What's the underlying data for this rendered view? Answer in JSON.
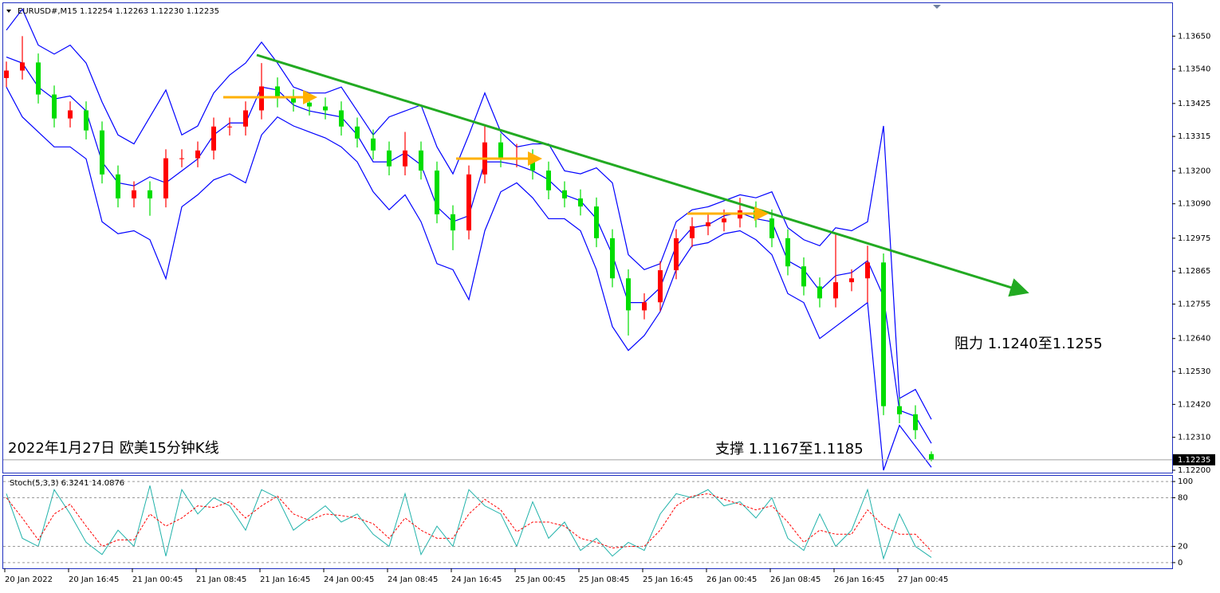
{
  "chart_data": [
    {
      "type": "candlestick",
      "title": "EURUSD#,M15 1.12254 1.12263 1.12230 1.12235",
      "annotations": [
        "2022年1月27日 欧美15分钟K线",
        "阻力 1.1240至1.1255",
        "支撑 1.1167至1.1185"
      ],
      "categories": [
        "20 Jan 2022",
        null,
        null,
        null,
        "20 Jan 16:45",
        null,
        null,
        null,
        "21 Jan 00:45",
        null,
        null,
        null,
        "21 Jan 08:45",
        null,
        null,
        null,
        "21 Jan 16:45",
        null,
        null,
        null,
        "24 Jan 00:45",
        null,
        null,
        null,
        "24 Jan 08:45",
        null,
        null,
        null,
        "24 Jan 16:45",
        null,
        null,
        null,
        "25 Jan 00:45",
        null,
        null,
        null,
        "25 Jan 08:45",
        null,
        null,
        null,
        "25 Jan 16:45",
        null,
        null,
        null,
        "26 Jan 00:45",
        null,
        null,
        null,
        "26 Jan 08:45",
        null,
        null,
        null,
        "26 Jan 16:45",
        null,
        null,
        null,
        "27 Jan 00:45",
        null,
        null
      ],
      "open": [
        1.1351,
        1.13535,
        1.13562,
        1.13455,
        1.13375,
        1.13402,
        1.13335,
        1.13188,
        1.13108,
        1.13135,
        1.13108,
        1.13242,
        1.13242,
        1.13268,
        1.13348,
        1.13348,
        1.13402,
        1.13482,
        1.13442,
        1.13428,
        1.13415,
        1.13402,
        1.13348,
        1.13308,
        1.13268,
        1.13215,
        1.13268,
        1.13201,
        1.13055,
        1.13001,
        1.13188,
        1.13295,
        1.13242,
        1.13242,
        1.13201,
        1.13135,
        1.13108,
        1.13081,
        1.12975,
        1.12841,
        1.12734,
        1.12761,
        1.12868,
        1.12975,
        1.13015,
        1.13028,
        1.13041,
        1.13068,
        1.13041,
        1.12975,
        1.12881,
        1.12814,
        1.12774,
        1.12828,
        1.12841,
        1.12894,
        1.12414,
        1.12387,
        1.12254
      ],
      "high": [
        1.13565,
        1.1365,
        1.13592,
        1.13485,
        1.13432,
        1.13432,
        1.13365,
        1.13218,
        1.13165,
        1.13165,
        1.13272,
        1.13272,
        1.13298,
        1.13378,
        1.13378,
        1.13432,
        1.1356,
        1.13512,
        1.13472,
        1.13458,
        1.13445,
        1.13432,
        1.13378,
        1.13338,
        1.13298,
        1.1333,
        1.13298,
        1.13231,
        1.13085,
        1.13218,
        1.13355,
        1.13325,
        1.1329,
        1.13272,
        1.13231,
        1.13165,
        1.13138,
        1.13111,
        1.13005,
        1.12871,
        1.12791,
        1.12898,
        1.13005,
        1.13045,
        1.13058,
        1.13071,
        1.1311,
        1.13098,
        1.13071,
        1.13005,
        1.12911,
        1.12844,
        1.1299,
        1.12871,
        1.1295,
        1.12924,
        1.12444,
        1.12417,
        1.12263
      ],
      "low": [
        1.1348,
        1.13505,
        1.13425,
        1.13345,
        1.13345,
        1.13305,
        1.13158,
        1.13078,
        1.13078,
        1.1305,
        1.13078,
        1.13212,
        1.13212,
        1.13238,
        1.13318,
        1.13318,
        1.13372,
        1.13412,
        1.13398,
        1.13385,
        1.13372,
        1.13318,
        1.13278,
        1.13238,
        1.13185,
        1.13185,
        1.13171,
        1.13025,
        1.12935,
        1.12971,
        1.13158,
        1.13212,
        1.13212,
        1.13171,
        1.13105,
        1.13078,
        1.13051,
        1.12945,
        1.12811,
        1.1265,
        1.12704,
        1.12731,
        1.12838,
        1.12945,
        1.12985,
        1.12998,
        1.13011,
        1.13011,
        1.12945,
        1.12851,
        1.12784,
        1.12744,
        1.12744,
        1.12798,
        1.1276,
        1.12384,
        1.12357,
        1.12304,
        1.1223
      ],
      "close": [
        1.13535,
        1.13562,
        1.13455,
        1.13375,
        1.13402,
        1.13335,
        1.13188,
        1.13108,
        1.13135,
        1.13108,
        1.13242,
        1.13242,
        1.13268,
        1.13348,
        1.13348,
        1.13402,
        1.13482,
        1.13442,
        1.13428,
        1.13415,
        1.13402,
        1.13348,
        1.13308,
        1.13268,
        1.13215,
        1.13268,
        1.13201,
        1.13055,
        1.13001,
        1.13188,
        1.13295,
        1.13242,
        1.13242,
        1.13201,
        1.13135,
        1.13108,
        1.13081,
        1.12975,
        1.12841,
        1.12734,
        1.12761,
        1.12868,
        1.12975,
        1.13015,
        1.13028,
        1.13041,
        1.13068,
        1.13041,
        1.12975,
        1.12881,
        1.12814,
        1.12774,
        1.12828,
        1.12841,
        1.12894,
        1.12414,
        1.12387,
        1.12334,
        1.12235
      ],
      "up_color": "#ff0000",
      "down_color": "#00dd00",
      "bands": {
        "color": "#0000ff",
        "upper": [
          1.1367,
          1.1374,
          1.1362,
          1.1359,
          1.1362,
          1.1356,
          1.1343,
          1.1332,
          1.1329,
          1.1338,
          1.1347,
          1.1332,
          1.1335,
          1.1346,
          1.1352,
          1.1356,
          1.1363,
          1.1356,
          1.1348,
          1.1346,
          1.1346,
          1.1348,
          1.134,
          1.1332,
          1.1338,
          1.134,
          1.1342,
          1.1328,
          1.1319,
          1.1332,
          1.1346,
          1.1333,
          1.1328,
          1.1329,
          1.1329,
          1.132,
          1.1319,
          1.1321,
          1.1316,
          1.1292,
          1.1287,
          1.1289,
          1.1303,
          1.1307,
          1.1308,
          1.131,
          1.1312,
          1.1311,
          1.1313,
          1.1301,
          1.1297,
          1.1295,
          1.1301,
          1.13,
          1.1303,
          1.1335,
          1.1244,
          1.1247,
          1.1237
        ],
        "middle": [
          1.1358,
          1.1356,
          1.1348,
          1.1344,
          1.1345,
          1.134,
          1.1323,
          1.1316,
          1.1315,
          1.1318,
          1.1316,
          1.132,
          1.1324,
          1.1332,
          1.1336,
          1.1336,
          1.1348,
          1.1347,
          1.1342,
          1.134,
          1.1339,
          1.1338,
          1.1332,
          1.1323,
          1.1323,
          1.1326,
          1.1322,
          1.1308,
          1.1303,
          1.1305,
          1.1323,
          1.1323,
          1.1322,
          1.132,
          1.1317,
          1.1312,
          1.131,
          1.1304,
          1.1292,
          1.1276,
          1.1276,
          1.1281,
          1.1295,
          1.1301,
          1.1302,
          1.1305,
          1.1306,
          1.1304,
          1.1303,
          1.129,
          1.1287,
          1.128,
          1.1285,
          1.1286,
          1.129,
          1.1278,
          1.124,
          1.1238,
          1.1229
        ],
        "lower": [
          1.1348,
          1.1338,
          1.1333,
          1.1328,
          1.1328,
          1.1324,
          1.1303,
          1.1299,
          1.13,
          1.1297,
          1.1284,
          1.1308,
          1.1312,
          1.1317,
          1.1319,
          1.1316,
          1.1332,
          1.1338,
          1.1335,
          1.1333,
          1.1331,
          1.1328,
          1.1323,
          1.1313,
          1.1307,
          1.1312,
          1.1303,
          1.1289,
          1.1287,
          1.1277,
          1.13,
          1.1313,
          1.1316,
          1.1311,
          1.1304,
          1.1304,
          1.13,
          1.1287,
          1.1268,
          1.126,
          1.1265,
          1.1273,
          1.1287,
          1.1295,
          1.1296,
          1.1299,
          1.13,
          1.1297,
          1.1292,
          1.1279,
          1.1276,
          1.1264,
          1.1268,
          1.1272,
          1.1276,
          1.122,
          1.1235,
          1.1228,
          1.1221
        ]
      },
      "ylim": [
        1.12192,
        1.1376
      ],
      "yticks": [
        {
          "value": 1.1365,
          "label": "1.13650"
        },
        {
          "value": 1.1354,
          "label": "1.13540"
        },
        {
          "value": 1.13425,
          "label": "1.13425"
        },
        {
          "value": 1.13315,
          "label": "1.13315"
        },
        {
          "value": 1.132,
          "label": "1.13200"
        },
        {
          "value": 1.1309,
          "label": "1.13090"
        },
        {
          "value": 1.12975,
          "label": "1.12975"
        },
        {
          "value": 1.12865,
          "label": "1.12865"
        },
        {
          "value": 1.12755,
          "label": "1.12755"
        },
        {
          "value": 1.1264,
          "label": "1.12640"
        },
        {
          "value": 1.1253,
          "label": "1.12530"
        },
        {
          "value": 1.1242,
          "label": "1.12420"
        },
        {
          "value": 1.1231,
          "label": "1.12310"
        },
        {
          "value": 1.122,
          "label": "1.12200"
        }
      ]
    },
    {
      "type": "line",
      "title": "Stoch(5,3,3) 6.3241 14.0876",
      "series": [
        {
          "color": "#20b2aa",
          "values": [
            85,
            30,
            20,
            90,
            60,
            25,
            10,
            40,
            20,
            95,
            8,
            90,
            60,
            80,
            70,
            40,
            90,
            80,
            40,
            55,
            70,
            50,
            60,
            35,
            20,
            85,
            10,
            45,
            20,
            90,
            70,
            60,
            20,
            75,
            30,
            50,
            15,
            30,
            8,
            25,
            15,
            60,
            85,
            80,
            90,
            70,
            75,
            55,
            80,
            30,
            15,
            60,
            20,
            40,
            90,
            5,
            60,
            20,
            6.3241
          ]
        },
        {
          "color": "#ff0000",
          "dashed": true,
          "values": [
            80,
            55,
            28,
            60,
            72,
            45,
            20,
            28,
            28,
            60,
            45,
            55,
            70,
            68,
            75,
            55,
            70,
            82,
            60,
            52,
            60,
            58,
            55,
            48,
            30,
            55,
            40,
            30,
            30,
            60,
            78,
            65,
            38,
            50,
            50,
            45,
            30,
            25,
            18,
            20,
            20,
            40,
            70,
            82,
            85,
            78,
            72,
            65,
            70,
            50,
            25,
            40,
            35,
            35,
            65,
            45,
            35,
            35,
            14.0876
          ]
        }
      ],
      "ylim": [
        -7,
        107
      ],
      "yticks": [
        0,
        20,
        80,
        100
      ]
    }
  ]
}
